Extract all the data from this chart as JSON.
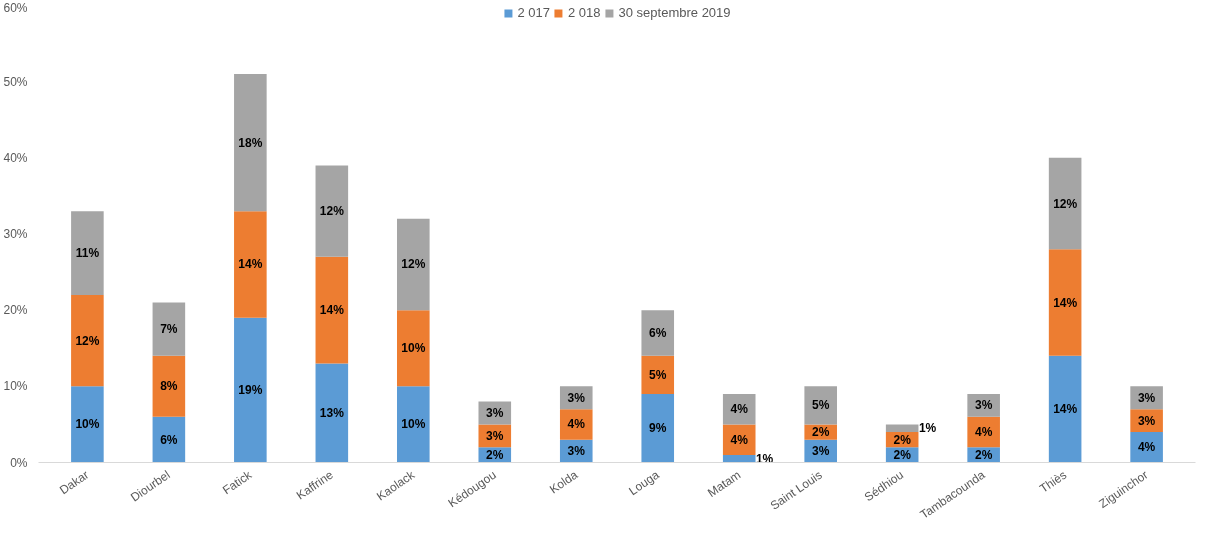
{
  "chart_data": {
    "type": "bar",
    "stacked": true,
    "legend": "top",
    "grid": false,
    "categories": [
      "Dakar",
      "Diourbel",
      "Fatick",
      "Kaffrine",
      "Kaolack",
      "Kédougou",
      "Kolda",
      "Louga",
      "Matam",
      "Saint Louis",
      "Sédhiou",
      "Tambacounda",
      "Thiès",
      "Ziguinchor"
    ],
    "ylim": [
      0,
      60
    ],
    "yticks": [
      {
        "value": 0,
        "label": "0%"
      },
      {
        "value": 10,
        "label": "10%"
      },
      {
        "value": 20,
        "label": "20%"
      },
      {
        "value": 30,
        "label": "30%"
      },
      {
        "value": 40,
        "label": "40%"
      },
      {
        "value": 50,
        "label": "50%"
      },
      {
        "value": 60,
        "label": "60%"
      }
    ],
    "series": [
      {
        "name": "2 017",
        "color": "#5b9bd5",
        "values": [
          10,
          6,
          19,
          13,
          10,
          2,
          3,
          9,
          1,
          3,
          2,
          2,
          14,
          4
        ],
        "value_labels": [
          "10%",
          "6%",
          "19%",
          "13%",
          "10%",
          "2%",
          "3%",
          "9%",
          "1%",
          "3%",
          "2%",
          "2%",
          "14%",
          "4%"
        ]
      },
      {
        "name": "2 018",
        "color": "#ed7d31",
        "values": [
          12,
          8,
          14,
          14,
          10,
          3,
          4,
          5,
          4,
          2,
          2,
          4,
          14,
          3
        ],
        "value_labels": [
          "12%",
          "8%",
          "14%",
          "14%",
          "10%",
          "3%",
          "4%",
          "5%",
          "4%",
          "2%",
          "2%",
          "4%",
          "14%",
          "3%"
        ]
      },
      {
        "name": "30 septembre 2019",
        "color": "#a5a5a5",
        "values": [
          11,
          7,
          18,
          12,
          12,
          3,
          3,
          6,
          4,
          5,
          1,
          3,
          12,
          3
        ],
        "value_labels": [
          "11%",
          "7%",
          "18%",
          "12%",
          "12%",
          "3%",
          "3%",
          "6%",
          "4%",
          "5%",
          "1%",
          "3%",
          "12%",
          "3%"
        ]
      }
    ]
  }
}
